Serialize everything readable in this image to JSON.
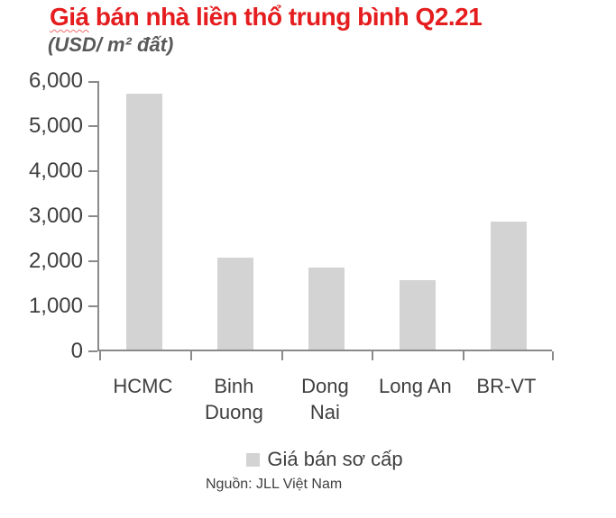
{
  "header": {
    "title_word1": "Giá",
    "title_rest": " bán nhà liền thổ trung bình Q2.21",
    "subtitle": "(USD/ m² đất)"
  },
  "chart_data": {
    "type": "bar",
    "title": "Giá bán nhà liền thổ trung bình Q2.21",
    "subtitle_unit": "(USD/ m² đất)",
    "categories": [
      "HCMC",
      "Binh Duong",
      "Dong Nai",
      "Long An",
      "BR-VT"
    ],
    "series": [
      {
        "name": "Giá bán sơ cấp",
        "values": [
          5680,
          2030,
          1820,
          1540,
          2840
        ]
      }
    ],
    "ylim": [
      0,
      6000
    ],
    "ytick_step": 1000,
    "ytick_labels": [
      "0",
      "1,000",
      "2,000",
      "3,000",
      "4,000",
      "5,000",
      "6,000"
    ],
    "grid": false,
    "legend_position": "bottom",
    "bar_color": "#d3d3d3",
    "axis_color": "#8a8a8a",
    "title_color": "#e51d1f",
    "text_color": "#3f3f3f"
  },
  "legend": {
    "label": "Giá bán sơ cấp"
  },
  "source": {
    "text": "Nguồn: JLL Việt Nam"
  }
}
